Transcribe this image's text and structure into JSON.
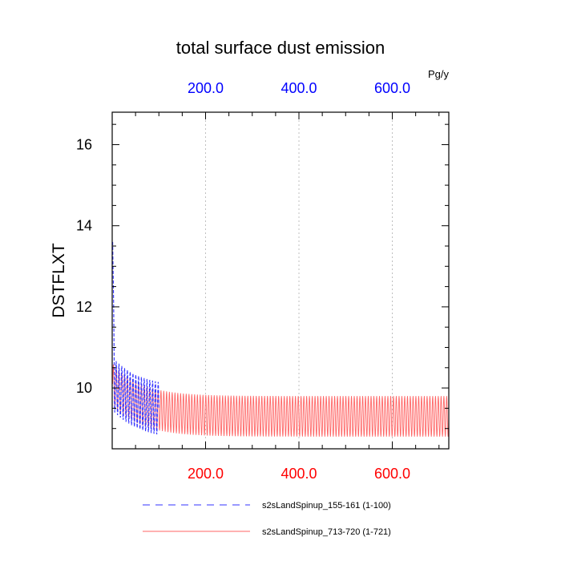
{
  "chart_data": {
    "type": "line",
    "title": "total surface dust emission",
    "ylabel": "DSTFLXT",
    "xlabel": "",
    "units_label": "Pg/y",
    "xlim": [
      0,
      721
    ],
    "ylim": [
      8.5,
      16.8
    ],
    "xticks": [
      200,
      400,
      600
    ],
    "xtick_labels": [
      "200.0",
      "400.0",
      "600.0"
    ],
    "yticks": [
      10,
      12,
      14,
      16
    ],
    "ytick_labels": [
      "10",
      "12",
      "14",
      "16"
    ],
    "top_tick_color": "#0000ff",
    "bottom_tick_color": "#ff0000",
    "grid": "vertical dotted at major x ticks",
    "legend_position": "bottom",
    "series": [
      {
        "name": "s2sLandSpinup_155-161 (1-100)",
        "color": "#3333ff",
        "style": "dashed",
        "x_range": [
          1,
          100
        ],
        "start_value": 13.6,
        "mean_start": 10.1,
        "mean_end": 9.35,
        "seasonal_high": 10.6,
        "seasonal_low": 9.3
      },
      {
        "name": "s2sLandSpinup_713-720 (1-721)",
        "color": "#ff6666",
        "style": "solid",
        "x_range": [
          1,
          721
        ],
        "mean_start": 10.1,
        "mean_end": 9.3,
        "seasonal_high": 9.9,
        "seasonal_low": 8.9
      }
    ]
  }
}
